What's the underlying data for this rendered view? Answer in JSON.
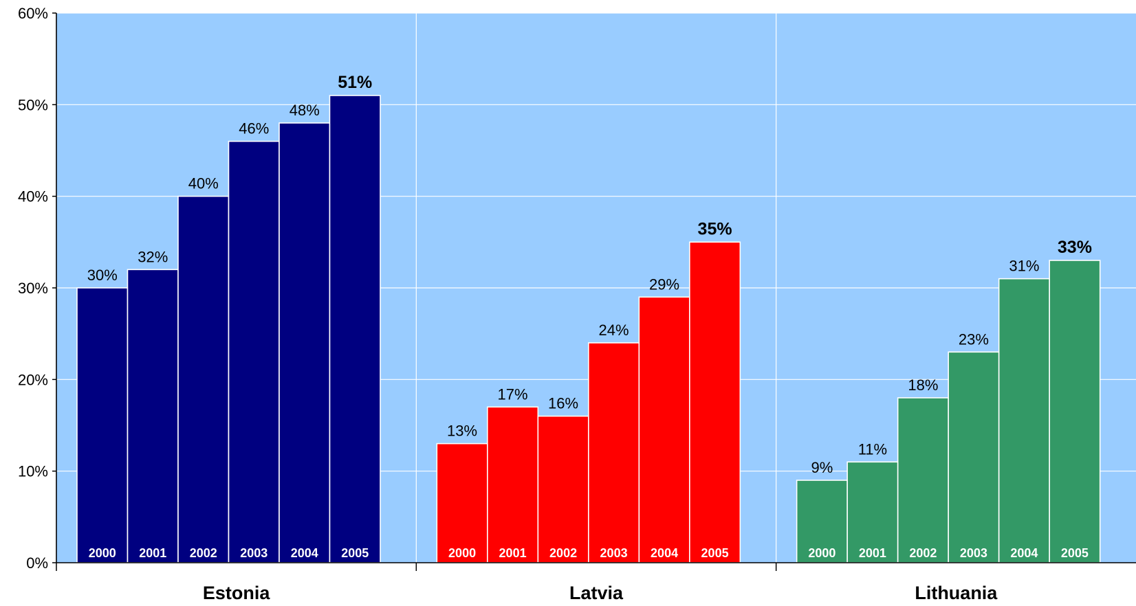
{
  "chart_data": {
    "type": "bar",
    "title": "",
    "xlabel": "",
    "ylabel": "",
    "ylim": [
      0,
      60
    ],
    "y_ticks": [
      "0%",
      "10%",
      "20%",
      "30%",
      "40%",
      "50%",
      "60%"
    ],
    "grid": true,
    "legend": "none",
    "background_color": "#99ccff",
    "grid_color": "#ffffff",
    "groups": [
      {
        "name": "Estonia",
        "color": "#000080",
        "categories": [
          "2000",
          "2001",
          "2002",
          "2003",
          "2004",
          "2005"
        ],
        "values": [
          30,
          32,
          40,
          46,
          48,
          51
        ],
        "labels": [
          "30%",
          "32%",
          "40%",
          "46%",
          "48%",
          "51%"
        ],
        "highlight_last": true
      },
      {
        "name": "Latvia",
        "color": "#ff0000",
        "categories": [
          "2000",
          "2001",
          "2002",
          "2003",
          "2004",
          "2005"
        ],
        "values": [
          13,
          17,
          16,
          24,
          29,
          35
        ],
        "labels": [
          "13%",
          "17%",
          "16%",
          "24%",
          "29%",
          "35%"
        ],
        "highlight_last": true
      },
      {
        "name": "Lithuania",
        "color": "#339966",
        "categories": [
          "2000",
          "2001",
          "2002",
          "2003",
          "2004",
          "2005"
        ],
        "values": [
          9,
          11,
          18,
          23,
          31,
          33
        ],
        "labels": [
          "9%",
          "11%",
          "18%",
          "23%",
          "31%",
          "33%"
        ],
        "highlight_last": true
      }
    ]
  }
}
